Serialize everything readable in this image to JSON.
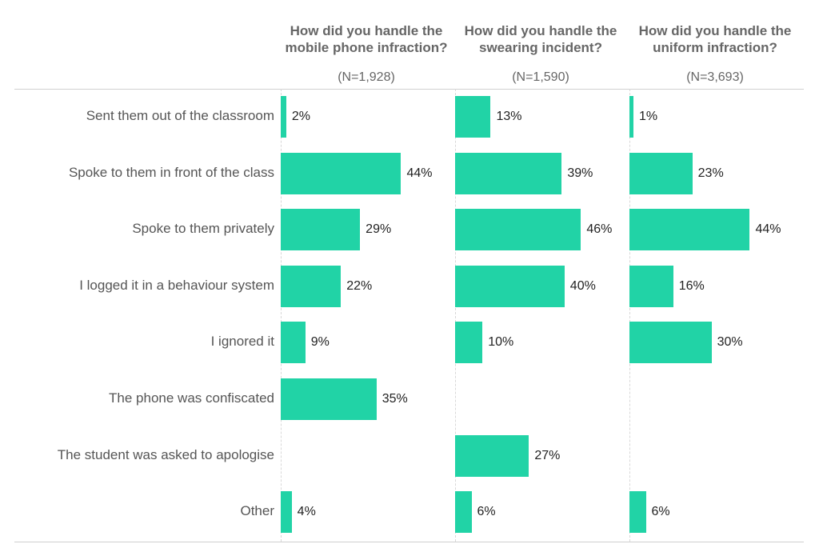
{
  "chart_data": {
    "type": "bar",
    "orientation": "horizontal",
    "color": "#21D3A6",
    "categories": [
      "Sent them out of the classroom",
      "Spoke to them in front of the class",
      "Spoke to them privately",
      "I logged it in a behaviour system",
      "I ignored it",
      "The phone was confiscated",
      "The student was asked to apologise",
      "Other"
    ],
    "series": [
      {
        "title": "How did you handle the mobile phone infraction?",
        "title_lines": [
          "How did you handle the",
          "mobile phone infraction?"
        ],
        "n": "(N=1,928)",
        "values": [
          2,
          44,
          29,
          22,
          9,
          35,
          null,
          4
        ]
      },
      {
        "title": "How did you handle the swearing incident?",
        "title_lines": [
          "How did you handle the",
          "swearing incident?"
        ],
        "n": "(N=1,590)",
        "values": [
          13,
          39,
          46,
          40,
          10,
          null,
          27,
          6
        ]
      },
      {
        "title": "How did you handle the uniform infraction?",
        "title_lines": [
          "How did you handle the",
          "uniform infraction?"
        ],
        "n": "(N=3,693)",
        "values": [
          1,
          23,
          44,
          16,
          30,
          null,
          null,
          6
        ]
      }
    ],
    "value_suffix": "%",
    "xlim": [
      0,
      60
    ]
  }
}
